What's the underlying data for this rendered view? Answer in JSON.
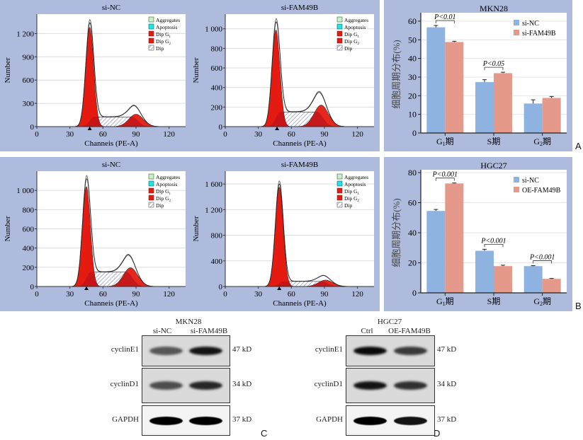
{
  "chart_data": [
    {
      "id": "flow-mkn28-sinc",
      "type": "area",
      "title": "si-NC",
      "xlabel": "Channeis (PE-A)",
      "ylabel": "Number",
      "xlim": [
        0,
        135
      ],
      "ylim": [
        0,
        1450
      ],
      "xticks": [
        0,
        30,
        60,
        90,
        120
      ],
      "yticks": [
        0,
        300,
        600,
        900,
        1200
      ],
      "ytick_labels": [
        "0",
        "300",
        "600",
        "900",
        "1 200"
      ],
      "g1_peak": {
        "x": 48,
        "y": 1280
      },
      "g2_peak": {
        "x": 90,
        "y": 160
      },
      "s_plateau": 125,
      "total_peak": 1340,
      "marker_x": 48,
      "legend": [
        "Aggregates",
        "Apoptosis",
        "Dip G1",
        "Dip G2",
        "Dip"
      ]
    },
    {
      "id": "flow-mkn28-sifam49b",
      "type": "area",
      "title": "si-FAM49B",
      "xlabel": "Channeis (PE-A)",
      "ylabel": "Number",
      "xlim": [
        0,
        135
      ],
      "ylim": [
        0,
        1150
      ],
      "xticks": [
        0,
        30,
        60,
        90,
        120
      ],
      "yticks": [
        0,
        200,
        400,
        600,
        800,
        1000
      ],
      "ytick_labels": [
        "0",
        "200",
        "400",
        "600",
        "800",
        "1 000"
      ],
      "g1_peak": {
        "x": 46,
        "y": 990
      },
      "g2_peak": {
        "x": 87,
        "y": 220
      },
      "s_plateau": 150,
      "total_peak": 1070,
      "marker_x": 47,
      "legend": [
        "Aggregates",
        "Apoptosis",
        "Dip G1",
        "Dip G2",
        "Dip"
      ]
    },
    {
      "id": "flow-hgc27-sinc",
      "type": "area",
      "title": "si-NC",
      "xlabel": "Channeis (PE-A)",
      "ylabel": "Number",
      "xlim": [
        0,
        135
      ],
      "ylim": [
        0,
        1200
      ],
      "xticks": [
        0,
        30,
        60,
        90,
        120
      ],
      "yticks": [
        0,
        200,
        400,
        600,
        800,
        1000
      ],
      "ytick_labels": [
        "0",
        "200",
        "400",
        "600",
        "800",
        "1 000"
      ],
      "g1_peak": {
        "x": 45,
        "y": 1040
      },
      "g2_peak": {
        "x": 85,
        "y": 195
      },
      "s_plateau": 150,
      "total_peak": 1120,
      "marker_x": 45,
      "legend": [
        "Aggregates",
        "Apoptosis",
        "Dip G1",
        "Dip G2",
        "Dip"
      ]
    },
    {
      "id": "flow-hgc27-sifam49b",
      "type": "area",
      "title": "si-FAM49B",
      "xlabel": "Channeis (PE-A)",
      "ylabel": "Number",
      "xlim": [
        0,
        135
      ],
      "ylim": [
        0,
        1800
      ],
      "xticks": [
        0,
        30,
        60,
        90,
        120
      ],
      "yticks": [
        0,
        400,
        800,
        1200,
        1600
      ],
      "ytick_labels": [
        "0",
        "400",
        "800",
        "1 200",
        "1 600"
      ],
      "g1_peak": {
        "x": 49,
        "y": 1550
      },
      "g2_peak": {
        "x": 91,
        "y": 100
      },
      "s_plateau": 80,
      "total_peak": 1600,
      "marker_x": 49,
      "legend": [
        "Aggregates",
        "Apoptosis",
        "Dip G1",
        "Dip G2",
        "Dip"
      ]
    },
    {
      "id": "bar-mkn28",
      "type": "bar",
      "title": "MKN28",
      "ylabel": "细胞周期分布(%)",
      "categories": [
        "G1期",
        "S期",
        "G2期"
      ],
      "ylim": [
        0,
        63
      ],
      "yticks": [
        0,
        10,
        20,
        30,
        40,
        50,
        60
      ],
      "series": [
        {
          "name": "si-NC",
          "color": "#8fb3e0",
          "values": [
            56.7,
            27.3,
            15.8
          ],
          "errors": [
            1.0,
            1.3,
            2.0
          ]
        },
        {
          "name": "si-FAM49B",
          "color": "#e5998a",
          "values": [
            48.8,
            32.1,
            18.8
          ],
          "errors": [
            0.4,
            0.5,
            0.8
          ]
        }
      ],
      "significance": [
        {
          "category": 0,
          "label": "P<0.01"
        },
        {
          "category": 1,
          "label": "P<0.05"
        }
      ],
      "panel_letter": "A"
    },
    {
      "id": "bar-hgc27",
      "type": "bar",
      "title": "HGC27",
      "ylabel": "细胞周期分布(%)",
      "categories": [
        "G1期",
        "S期",
        "G2期"
      ],
      "ylim": [
        0,
        80
      ],
      "yticks": [
        0,
        20,
        40,
        60,
        80
      ],
      "series": [
        {
          "name": "si-NC",
          "color": "#8fb3e0",
          "values": [
            54.5,
            28.0,
            17.8
          ],
          "errors": [
            1.0,
            1.0,
            0.3
          ]
        },
        {
          "name": "OE-FAM49B",
          "color": "#e5998a",
          "values": [
            72.8,
            17.8,
            9.3
          ],
          "errors": [
            0.3,
            0.6,
            0.3
          ]
        }
      ],
      "significance": [
        {
          "category": 0,
          "label": "P<0.001"
        },
        {
          "category": 1,
          "label": "P<0.001"
        },
        {
          "category": 2,
          "label": "P<0.001"
        }
      ],
      "panel_letter": "B"
    }
  ],
  "western_blots": [
    {
      "title": "MKN28",
      "lanes": [
        "si-NC",
        "si-FAM49B"
      ],
      "rows": [
        {
          "protein": "cyclinE1",
          "size": "47 kD",
          "intensity": [
            0.55,
            0.9
          ]
        },
        {
          "protein": "cyclinD1",
          "size": "34 kD",
          "intensity": [
            0.6,
            0.8
          ]
        },
        {
          "protein": "GAPDH",
          "size": "37 kD",
          "intensity": [
            1.0,
            1.0
          ]
        }
      ],
      "panel_letter": "C"
    },
    {
      "title": "HGC27",
      "lanes": [
        "Ctrl",
        "OE-FAM49B"
      ],
      "rows": [
        {
          "protein": "cyclinE1",
          "size": "47 kD",
          "intensity": [
            0.95,
            0.7
          ]
        },
        {
          "protein": "cyclinD1",
          "size": "34 kD",
          "intensity": [
            0.9,
            0.75
          ]
        },
        {
          "protein": "GAPDH",
          "size": "37 kD",
          "intensity": [
            1.0,
            0.9
          ]
        }
      ],
      "panel_letter": "D"
    }
  ],
  "legend_labels": {
    "aggregates": "Aggregates",
    "apoptosis": "Apoptosis",
    "dip_g1": "Dip G",
    "dip_g2": "Dip G",
    "dip": "Dip"
  },
  "letters": {
    "a": "A",
    "b": "B",
    "c": "C",
    "d": "D"
  }
}
